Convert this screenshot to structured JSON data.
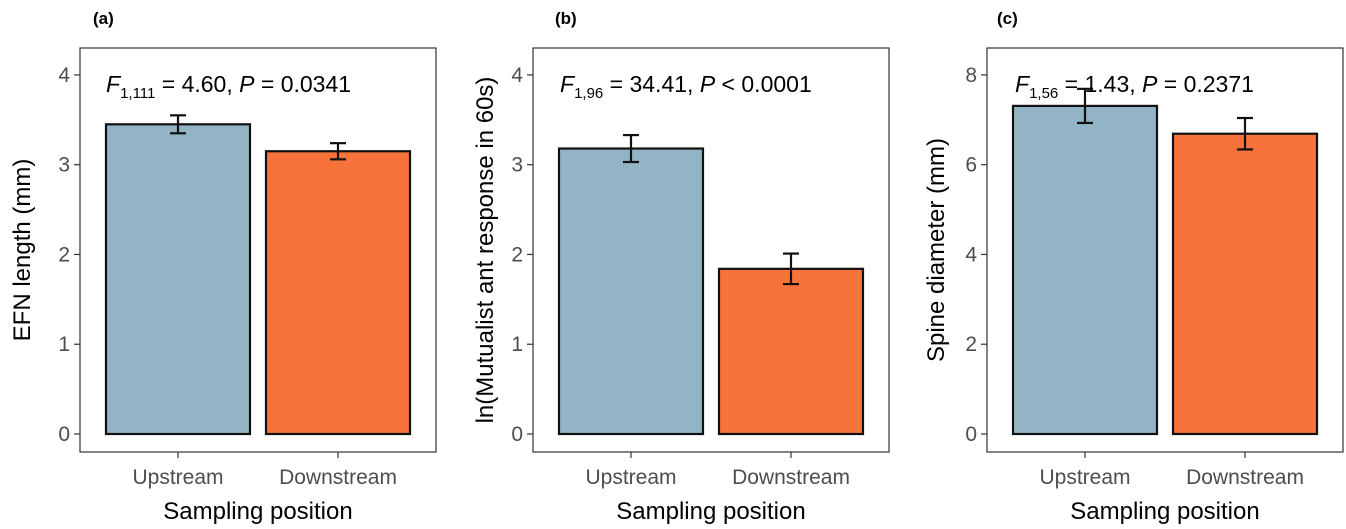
{
  "chart_data": [
    {
      "type": "bar",
      "panel_label": "(a)",
      "categories": [
        "Upstream",
        "Downstream"
      ],
      "values": [
        3.45,
        3.15
      ],
      "errors": [
        0.1,
        0.09
      ],
      "colors": [
        "#92b4c4",
        "#f8733b"
      ],
      "xlabel": "Sampling position",
      "ylabel": "EFN length (mm)",
      "ylim": [
        0,
        4.3
      ],
      "yticks": [
        "0",
        "1",
        "2",
        "3",
        "4"
      ],
      "stat": {
        "f": "F",
        "sub": "1,111",
        "rest": " = 4.60, ",
        "p": "P",
        "p_rest": " = 0.0341"
      }
    },
    {
      "type": "bar",
      "panel_label": "(b)",
      "categories": [
        "Upstream",
        "Downstream"
      ],
      "values": [
        3.18,
        1.84
      ],
      "errors": [
        0.15,
        0.17
      ],
      "colors": [
        "#92b4c4",
        "#f8733b"
      ],
      "xlabel": "Sampling position",
      "ylabel": "ln(Mutualist ant response in 60s)",
      "ylim": [
        0,
        4.3
      ],
      "yticks": [
        "0",
        "1",
        "2",
        "3",
        "4"
      ],
      "stat": {
        "f": "F",
        "sub": "1,96",
        "rest": " = 34.41, ",
        "p": "P",
        "p_rest": " < 0.0001"
      }
    },
    {
      "type": "bar",
      "panel_label": "(c)",
      "categories": [
        "Upstream",
        "Downstream"
      ],
      "values": [
        7.31,
        6.69
      ],
      "errors": [
        0.38,
        0.35
      ],
      "colors": [
        "#92b4c4",
        "#f8733b"
      ],
      "xlabel": "Sampling position",
      "ylabel": "Spine diameter (mm)",
      "ylim": [
        0,
        8.6
      ],
      "yticks": [
        "0",
        "2",
        "4",
        "6",
        "8"
      ],
      "stat": {
        "f": "F",
        "sub": "1,56",
        "rest": " = 1.43, ",
        "p": "P",
        "p_rest": " = 0.2371"
      }
    }
  ]
}
